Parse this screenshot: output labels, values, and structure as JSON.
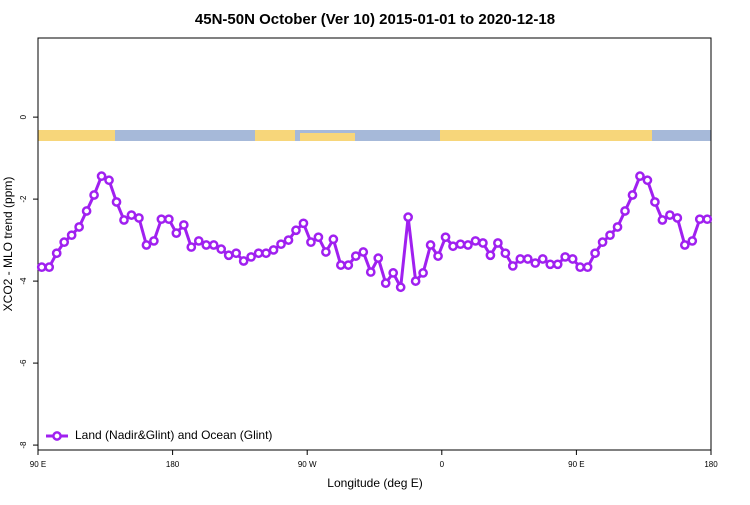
{
  "chart_data": {
    "type": "line",
    "title": "45N-50N October (Ver 10)   2015-01-01 to 2020-12-18",
    "x_label": "Longitude (deg E)",
    "y_label": "XCO2 - MLO trend (ppm)",
    "xlim": [
      90,
      540
    ],
    "ylim": [
      -8.12,
      1.93
    ],
    "xticks": [
      {
        "value": 90,
        "label": "90 E"
      },
      180,
      {
        "value": 270,
        "label": "90 W"
      },
      {
        "value": 360,
        "label": "0"
      },
      {
        "value": 450,
        "label": "90 E"
      },
      {
        "value": 540,
        "label": "180"
      }
    ],
    "yticks": [
      0,
      -2,
      -4,
      -6,
      -8
    ],
    "legend": "bottom-left",
    "x": [
      92.5,
      97.5,
      102.5,
      107.5,
      112.5,
      117.5,
      122.5,
      127.5,
      132.5,
      137.5,
      142.5,
      147.5,
      152.5,
      157.5,
      162.5,
      167.5,
      172.5,
      177.5,
      182.5,
      187.5,
      192.5,
      197.5,
      202.5,
      207.5,
      212.5,
      217.5,
      222.5,
      227.5,
      232.5,
      237.5,
      242.5,
      247.5,
      252.5,
      257.5,
      262.5,
      267.5,
      272.5,
      277.5,
      282.5,
      287.5,
      292.5,
      297.5,
      302.5,
      307.5,
      312.5,
      317.5,
      322.5,
      327.5,
      332.5,
      337.5,
      342.5,
      347.5,
      352.5,
      357.5,
      362.5,
      367.5,
      372.5,
      377.5,
      382.5,
      387.5,
      392.5,
      397.5,
      402.5,
      407.5,
      412.5,
      417.5,
      422.5,
      427.5,
      432.5,
      437.5,
      442.5,
      447.5,
      452.5,
      457.5,
      462.5,
      467.5,
      472.5,
      477.5,
      482.5,
      487.5,
      492.5,
      497.5,
      502.5,
      507.5,
      512.5,
      517.5,
      522.5,
      527.5,
      532.5,
      537.5
    ],
    "series": [
      {
        "name": "Land (Nadir&Glint) and Ocean (Glint)",
        "color": "#a020f0",
        "values": [
          -3.66,
          -3.66,
          -3.32,
          -3.05,
          -2.88,
          -2.68,
          -2.29,
          -1.9,
          -1.44,
          -1.54,
          -2.07,
          -2.51,
          -2.39,
          -2.46,
          -3.12,
          -3.02,
          -2.49,
          -2.49,
          -2.83,
          -2.63,
          -3.17,
          -3.02,
          -3.12,
          -3.12,
          -3.22,
          -3.37,
          -3.32,
          -3.51,
          -3.41,
          -3.32,
          -3.32,
          -3.24,
          -3.1,
          -3.0,
          -2.76,
          -2.59,
          -3.05,
          -2.93,
          -3.29,
          -2.98,
          -3.61,
          -3.61,
          -3.39,
          -3.29,
          -3.78,
          -3.44,
          -4.05,
          -3.8,
          -4.15,
          -2.44,
          -4.0,
          -3.8,
          -3.12,
          -3.39,
          -2.93,
          -3.15,
          -3.1,
          -3.12,
          -3.02,
          -3.07,
          -3.37,
          -3.07,
          -3.32,
          -3.63,
          -3.46,
          -3.46,
          -3.56,
          -3.46,
          -3.59,
          -3.59,
          -3.41,
          -3.46,
          -3.66,
          -3.66,
          -3.32,
          -3.05,
          -2.88,
          -2.68,
          -2.29,
          -1.9,
          -1.44,
          -1.54,
          -2.07,
          -2.51,
          -2.39,
          -2.46,
          -3.12,
          -3.02,
          -2.49,
          -2.49
        ]
      }
    ]
  }
}
